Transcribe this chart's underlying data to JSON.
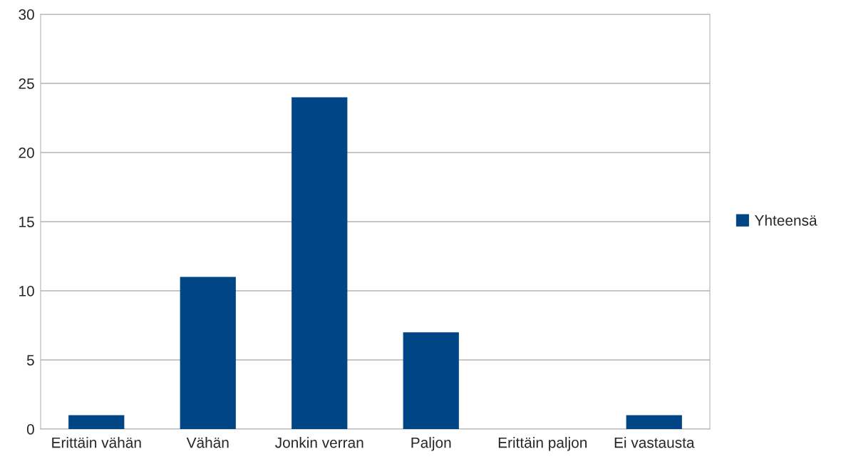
{
  "chart_data": {
    "type": "bar",
    "categories": [
      "Erittäin vähän",
      "Vähän",
      "Jonkin verran",
      "Paljon",
      "Erittäin paljon",
      "Ei vastausta"
    ],
    "series": [
      {
        "name": "Yhteensä",
        "color": "#004586",
        "values": [
          1,
          11,
          24,
          7,
          0,
          1
        ]
      }
    ],
    "ylim": [
      0,
      30
    ],
    "yticks": [
      0,
      5,
      10,
      15,
      20,
      25,
      30
    ],
    "grid": "y",
    "legend": "right"
  }
}
